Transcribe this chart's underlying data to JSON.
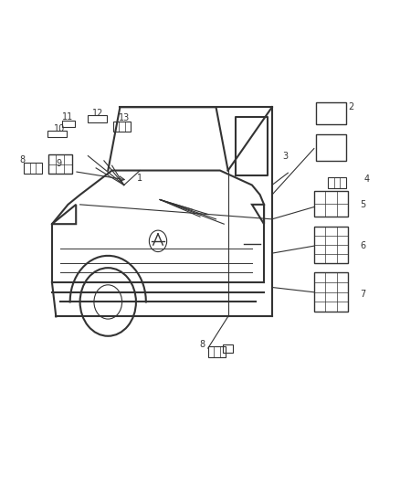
{
  "background_color": "#ffffff",
  "line_color": "#333333",
  "figsize": [
    4.38,
    5.33
  ],
  "dpi": 100,
  "van_body": {
    "outline_color": "#333333",
    "line_width": 1.5
  }
}
